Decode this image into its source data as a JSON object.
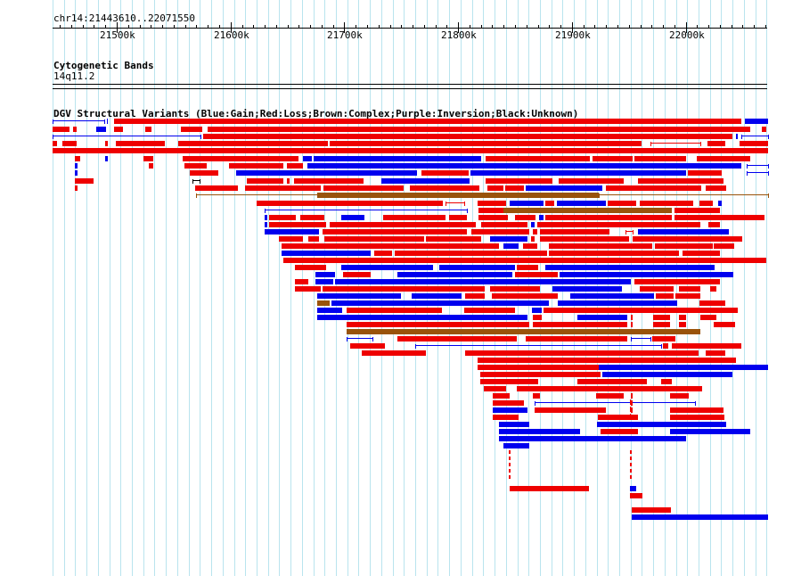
{
  "ruler": {
    "location": "chr14:21443610..22071550",
    "ticks": [
      {
        "label": "21500k",
        "pos": 21500
      },
      {
        "label": "21600k",
        "pos": 21600
      },
      {
        "label": "21700k",
        "pos": 21700
      },
      {
        "label": "21800k",
        "pos": 21800
      },
      {
        "label": "21900k",
        "pos": 21900
      },
      {
        "label": "22000k",
        "pos": 22000
      }
    ]
  },
  "cytobands": {
    "title": "Cytogenetic Bands",
    "band": "14q11.2"
  },
  "dgv": {
    "title": "DGV Structural Variants (Blue:Gain;Red:Loss;Brown:Complex;Purple:Inversion;Black:Unknown)",
    "colors": {
      "gain": "#0000ee",
      "loss": "#ee0000",
      "complex": "#99530b",
      "unknown": "#000000",
      "grid": "#b9e4ee"
    }
  }
}
